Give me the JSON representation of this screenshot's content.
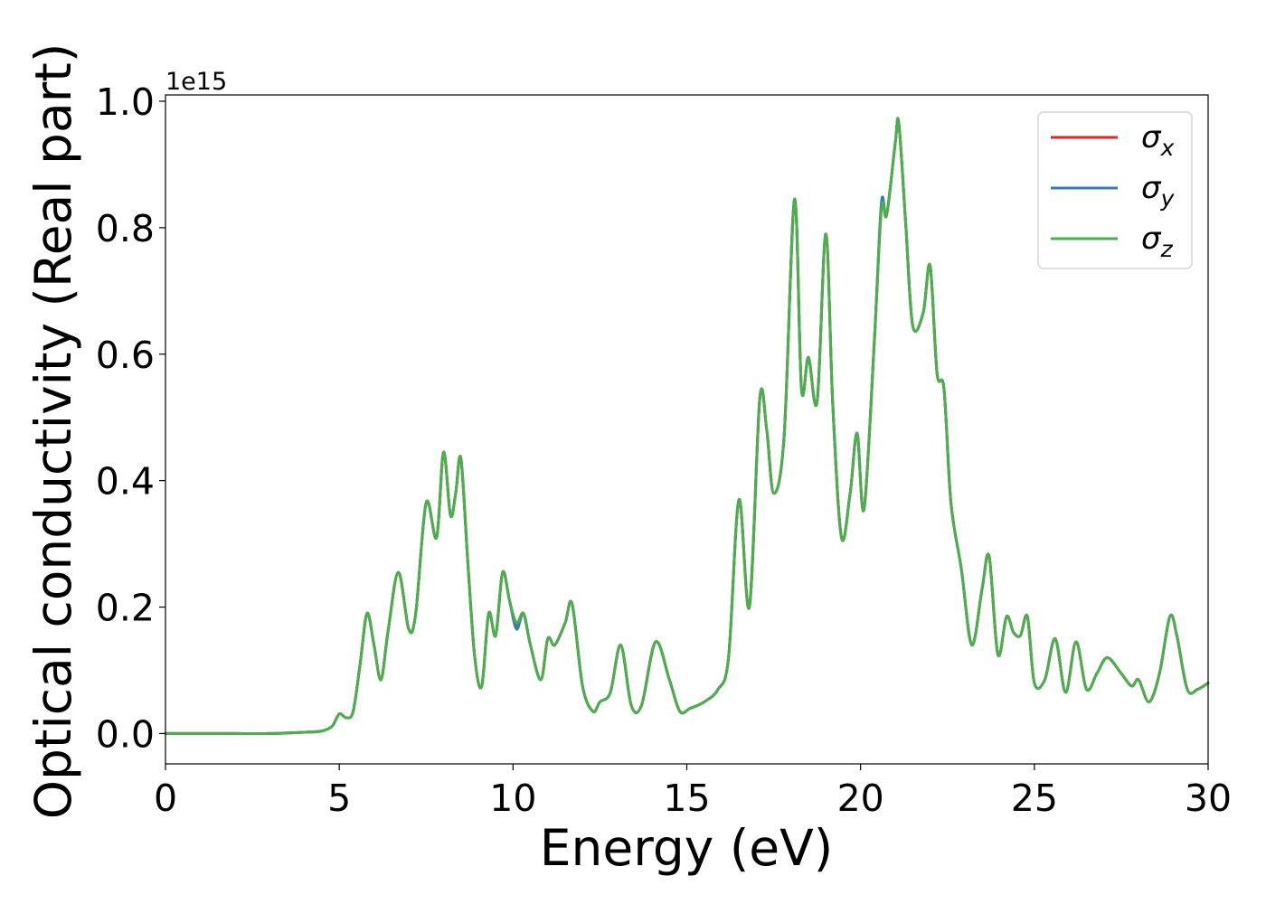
{
  "colors": {
    "background": "#ffffff",
    "axes": "#000000",
    "legend_border": "#cccccc"
  },
  "chart_data": {
    "type": "line",
    "title": "",
    "xlabel": "Energy (eV)",
    "ylabel": "Optical conductivity (Real part)",
    "y_offset_text": "1e15",
    "xlim": [
      0,
      30
    ],
    "ylim": [
      -0.048,
      1.01
    ],
    "x_ticks": [
      0,
      5,
      10,
      15,
      20,
      25,
      30
    ],
    "x_tick_labels": [
      "0",
      "5",
      "10",
      "15",
      "20",
      "25",
      "30"
    ],
    "y_ticks": [
      0.0,
      0.2,
      0.4,
      0.6,
      0.8,
      1.0
    ],
    "y_tick_labels": [
      "0.0",
      "0.2",
      "0.4",
      "0.6",
      "0.8",
      "1.0"
    ],
    "grid": false,
    "legend_position": "top-right",
    "series": [
      {
        "name": "σ_x",
        "label_base": "σ",
        "label_sub": "x",
        "color": "#d62728",
        "x": [
          0,
          1,
          2,
          3,
          4,
          4.5,
          4.8,
          5.0,
          5.2,
          5.4,
          5.6,
          5.8,
          6.0,
          6.2,
          6.4,
          6.7,
          7.0,
          7.2,
          7.5,
          7.8,
          8.0,
          8.2,
          8.35,
          8.5,
          8.7,
          8.9,
          9.1,
          9.3,
          9.5,
          9.7,
          9.9,
          10.1,
          10.3,
          10.5,
          10.8,
          11.0,
          11.2,
          11.5,
          11.7,
          12.0,
          12.3,
          12.5,
          12.8,
          13.1,
          13.4,
          13.7,
          14.1,
          14.5,
          14.8,
          15.1,
          15.5,
          15.9,
          16.2,
          16.5,
          16.8,
          17.1,
          17.3,
          17.5,
          17.8,
          18.1,
          18.3,
          18.5,
          18.75,
          19.0,
          19.2,
          19.45,
          19.7,
          19.9,
          20.1,
          20.4,
          20.6,
          20.75,
          21.0,
          21.1,
          21.3,
          21.5,
          21.8,
          22.0,
          22.2,
          22.4,
          22.6,
          22.9,
          23.2,
          23.5,
          23.7,
          23.95,
          24.2,
          24.4,
          24.6,
          24.8,
          25.0,
          25.3,
          25.6,
          25.9,
          26.2,
          26.5,
          26.8,
          27.1,
          27.5,
          27.8,
          28.0,
          28.3,
          28.6,
          28.9,
          29.1,
          29.4,
          29.7,
          30.0
        ],
        "y": [
          0.0,
          0.0,
          0.0,
          0.0,
          0.002,
          0.004,
          0.012,
          0.031,
          0.025,
          0.035,
          0.11,
          0.19,
          0.14,
          0.085,
          0.16,
          0.255,
          0.165,
          0.19,
          0.365,
          0.31,
          0.445,
          0.345,
          0.38,
          0.435,
          0.27,
          0.12,
          0.075,
          0.19,
          0.155,
          0.255,
          0.21,
          0.17,
          0.19,
          0.14,
          0.085,
          0.15,
          0.14,
          0.175,
          0.205,
          0.075,
          0.035,
          0.05,
          0.065,
          0.14,
          0.045,
          0.045,
          0.145,
          0.085,
          0.035,
          0.04,
          0.05,
          0.07,
          0.12,
          0.37,
          0.2,
          0.53,
          0.48,
          0.38,
          0.47,
          0.845,
          0.545,
          0.595,
          0.525,
          0.79,
          0.52,
          0.31,
          0.38,
          0.475,
          0.355,
          0.625,
          0.835,
          0.82,
          0.935,
          0.965,
          0.805,
          0.645,
          0.665,
          0.74,
          0.57,
          0.545,
          0.365,
          0.26,
          0.14,
          0.23,
          0.28,
          0.125,
          0.185,
          0.16,
          0.155,
          0.185,
          0.08,
          0.085,
          0.15,
          0.065,
          0.145,
          0.07,
          0.095,
          0.12,
          0.095,
          0.075,
          0.085,
          0.05,
          0.095,
          0.185,
          0.155,
          0.07,
          0.07,
          0.08
        ]
      },
      {
        "name": "σ_y",
        "label_base": "σ",
        "label_sub": "y",
        "color": "#377eb8",
        "x": [
          0,
          1,
          2,
          3,
          4,
          4.5,
          4.8,
          5.0,
          5.2,
          5.4,
          5.6,
          5.8,
          6.0,
          6.2,
          6.4,
          6.7,
          7.0,
          7.2,
          7.5,
          7.8,
          8.0,
          8.2,
          8.35,
          8.5,
          8.7,
          8.9,
          9.1,
          9.3,
          9.5,
          9.7,
          9.9,
          10.1,
          10.3,
          10.5,
          10.8,
          11.0,
          11.2,
          11.5,
          11.7,
          12.0,
          12.3,
          12.5,
          12.8,
          13.1,
          13.4,
          13.7,
          14.1,
          14.5,
          14.8,
          15.1,
          15.5,
          15.9,
          16.2,
          16.5,
          16.8,
          17.1,
          17.3,
          17.5,
          17.8,
          18.1,
          18.3,
          18.5,
          18.75,
          19.0,
          19.2,
          19.45,
          19.7,
          19.9,
          20.1,
          20.4,
          20.6,
          20.75,
          21.0,
          21.1,
          21.3,
          21.5,
          21.8,
          22.0,
          22.2,
          22.4,
          22.6,
          22.9,
          23.2,
          23.5,
          23.7,
          23.95,
          24.2,
          24.4,
          24.6,
          24.8,
          25.0,
          25.3,
          25.6,
          25.9,
          26.2,
          26.5,
          26.8,
          27.1,
          27.5,
          27.8,
          28.0,
          28.3,
          28.6,
          28.9,
          29.1,
          29.4,
          29.7,
          30.0
        ],
        "y": [
          0.0,
          0.0,
          0.0,
          0.0,
          0.002,
          0.004,
          0.012,
          0.031,
          0.025,
          0.035,
          0.11,
          0.19,
          0.14,
          0.085,
          0.16,
          0.255,
          0.165,
          0.19,
          0.365,
          0.31,
          0.445,
          0.345,
          0.38,
          0.435,
          0.27,
          0.12,
          0.075,
          0.19,
          0.155,
          0.255,
          0.21,
          0.165,
          0.19,
          0.14,
          0.085,
          0.15,
          0.14,
          0.175,
          0.205,
          0.075,
          0.035,
          0.05,
          0.065,
          0.14,
          0.045,
          0.045,
          0.145,
          0.085,
          0.035,
          0.04,
          0.05,
          0.07,
          0.12,
          0.37,
          0.2,
          0.53,
          0.48,
          0.38,
          0.47,
          0.845,
          0.545,
          0.595,
          0.525,
          0.79,
          0.52,
          0.31,
          0.38,
          0.475,
          0.355,
          0.625,
          0.84,
          0.82,
          0.935,
          0.965,
          0.805,
          0.645,
          0.665,
          0.74,
          0.57,
          0.545,
          0.365,
          0.26,
          0.14,
          0.23,
          0.28,
          0.125,
          0.185,
          0.16,
          0.155,
          0.185,
          0.08,
          0.085,
          0.15,
          0.065,
          0.145,
          0.07,
          0.095,
          0.12,
          0.095,
          0.075,
          0.085,
          0.05,
          0.095,
          0.185,
          0.155,
          0.07,
          0.07,
          0.08
        ]
      },
      {
        "name": "σ_z",
        "label_base": "σ",
        "label_sub": "z",
        "color": "#4daf4a",
        "x": [
          0,
          1,
          2,
          3,
          4,
          4.5,
          4.8,
          5.0,
          5.2,
          5.4,
          5.6,
          5.8,
          6.0,
          6.2,
          6.4,
          6.7,
          7.0,
          7.2,
          7.5,
          7.8,
          8.0,
          8.2,
          8.35,
          8.5,
          8.7,
          8.9,
          9.1,
          9.3,
          9.5,
          9.7,
          9.9,
          10.1,
          10.3,
          10.5,
          10.8,
          11.0,
          11.2,
          11.5,
          11.7,
          12.0,
          12.3,
          12.5,
          12.8,
          13.1,
          13.4,
          13.7,
          14.1,
          14.5,
          14.8,
          15.1,
          15.5,
          15.9,
          16.2,
          16.5,
          16.8,
          17.1,
          17.3,
          17.5,
          17.8,
          18.1,
          18.3,
          18.5,
          18.75,
          19.0,
          19.2,
          19.45,
          19.7,
          19.9,
          20.1,
          20.4,
          20.6,
          20.75,
          21.0,
          21.1,
          21.3,
          21.5,
          21.8,
          22.0,
          22.2,
          22.4,
          22.6,
          22.9,
          23.2,
          23.5,
          23.7,
          23.95,
          24.2,
          24.4,
          24.6,
          24.8,
          25.0,
          25.3,
          25.6,
          25.9,
          26.2,
          26.5,
          26.8,
          27.1,
          27.5,
          27.8,
          28.0,
          28.3,
          28.6,
          28.9,
          29.1,
          29.4,
          29.7,
          30.0
        ],
        "y": [
          0.0,
          0.0,
          0.0,
          0.0,
          0.002,
          0.004,
          0.012,
          0.031,
          0.025,
          0.035,
          0.11,
          0.19,
          0.14,
          0.085,
          0.16,
          0.255,
          0.165,
          0.19,
          0.365,
          0.31,
          0.445,
          0.345,
          0.38,
          0.435,
          0.27,
          0.12,
          0.075,
          0.19,
          0.155,
          0.255,
          0.21,
          0.175,
          0.19,
          0.14,
          0.085,
          0.15,
          0.14,
          0.175,
          0.205,
          0.075,
          0.035,
          0.05,
          0.065,
          0.14,
          0.045,
          0.045,
          0.145,
          0.085,
          0.035,
          0.04,
          0.05,
          0.07,
          0.12,
          0.37,
          0.2,
          0.53,
          0.48,
          0.38,
          0.47,
          0.845,
          0.545,
          0.595,
          0.525,
          0.79,
          0.52,
          0.31,
          0.38,
          0.475,
          0.355,
          0.625,
          0.83,
          0.82,
          0.935,
          0.965,
          0.805,
          0.645,
          0.665,
          0.74,
          0.57,
          0.545,
          0.365,
          0.26,
          0.14,
          0.23,
          0.28,
          0.125,
          0.185,
          0.16,
          0.155,
          0.185,
          0.08,
          0.085,
          0.15,
          0.065,
          0.145,
          0.07,
          0.095,
          0.12,
          0.095,
          0.075,
          0.085,
          0.05,
          0.095,
          0.185,
          0.155,
          0.07,
          0.07,
          0.08
        ]
      }
    ]
  }
}
